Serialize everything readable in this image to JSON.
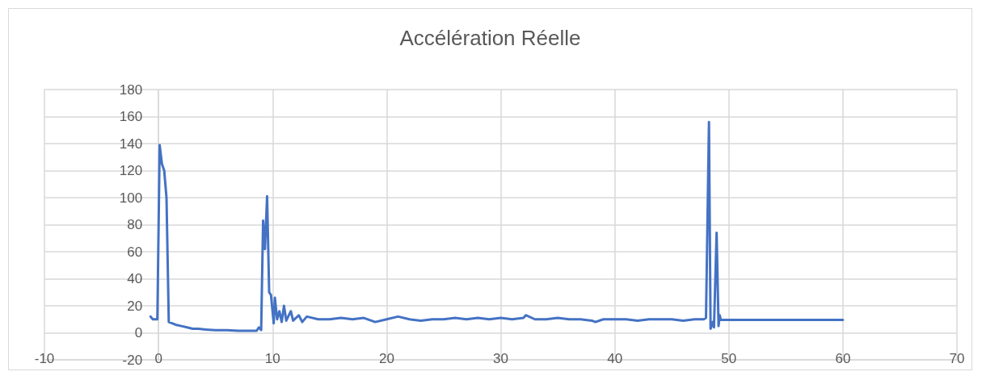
{
  "chart_data": {
    "type": "line",
    "title": "Accélération Réelle",
    "x": [
      -0.7,
      -0.5,
      -0.1,
      0.1,
      0.3,
      0.5,
      0.7,
      0.9,
      1.5,
      2,
      2.5,
      3,
      3.5,
      4,
      5,
      6,
      7,
      8,
      8.6,
      8.8,
      9.0,
      9.17,
      9.33,
      9.52,
      9.7,
      9.86,
      10.1,
      10.2,
      10.4,
      10.6,
      10.8,
      11.0,
      11.2,
      11.6,
      11.8,
      12.3,
      12.6,
      13.0,
      14,
      15,
      16,
      17,
      18,
      19,
      20,
      21,
      22,
      23,
      24,
      25,
      26,
      27,
      28,
      29,
      30,
      31,
      32,
      32.2,
      33,
      34,
      35,
      36,
      37,
      38,
      38.3,
      39,
      40,
      41,
      42,
      43,
      44,
      45,
      46,
      47,
      47.8,
      48.0,
      48.26,
      48.4,
      48.6,
      48.7,
      48.93,
      49.1,
      49.2,
      49.3,
      50,
      55,
      60
    ],
    "series": [
      {
        "color": "#4472c4",
        "values": [
          12,
          10,
          10,
          139,
          125,
          120,
          100,
          8,
          6,
          5,
          4,
          3,
          3,
          2.5,
          2,
          2,
          1.5,
          1.5,
          1.5,
          4,
          2,
          83,
          62,
          101,
          30,
          28,
          7,
          26,
          10,
          16,
          8,
          20,
          9,
          16,
          9,
          13,
          8,
          12,
          10,
          10,
          11,
          10,
          11,
          8,
          10,
          12,
          10,
          9,
          10,
          10,
          11,
          10,
          11,
          10,
          11,
          10,
          11,
          13,
          10,
          10,
          11,
          10,
          10,
          9,
          8,
          10,
          10,
          10,
          9,
          10,
          10,
          10,
          9,
          10,
          10,
          11,
          156,
          3,
          8,
          4,
          74,
          5,
          13,
          9.5,
          9.5,
          9.5,
          9.5
        ]
      }
    ],
    "xlim": [
      -10,
      70
    ],
    "xticks": [
      -10,
      0,
      10,
      20,
      30,
      40,
      50,
      60,
      70
    ],
    "ylim": [
      -20,
      180
    ],
    "yticks": [
      -20,
      0,
      20,
      40,
      60,
      80,
      100,
      120,
      140,
      160,
      180
    ],
    "grid": true,
    "marker": "none",
    "line_style": "solid"
  }
}
